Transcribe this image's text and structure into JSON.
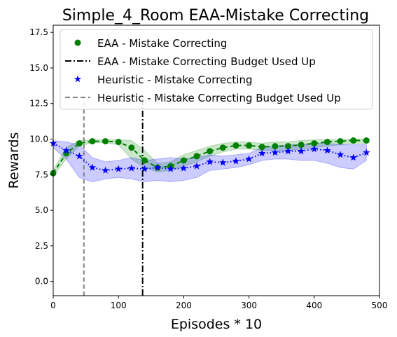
{
  "chart_data": {
    "type": "line",
    "title": "Simple_4_Room EAA-Mistake Correcting",
    "xlabel": "Episodes * 10",
    "ylabel": "Rewards",
    "xlim": [
      0,
      500
    ],
    "ylim": [
      -1.0,
      18.0
    ],
    "xticks": [
      0,
      100,
      200,
      300,
      400,
      500
    ],
    "yticks": [
      0.0,
      2.5,
      5.0,
      7.5,
      10.0,
      12.5,
      15.0,
      17.5
    ],
    "xtick_labels": [
      "0",
      "100",
      "200",
      "300",
      "400",
      "500"
    ],
    "ytick_labels": [
      "0.0",
      "2.5",
      "5.0",
      "7.5",
      "10.0",
      "12.5",
      "15.0",
      "17.5"
    ],
    "grid": false,
    "legend_position": "top",
    "series": [
      {
        "name": "EAA - Mistake Correcting",
        "color": "#008000",
        "marker": "circle",
        "linestyle": "dashed",
        "x": [
          0,
          20,
          40,
          60,
          80,
          100,
          120,
          140,
          160,
          180,
          200,
          220,
          240,
          260,
          280,
          300,
          320,
          340,
          360,
          380,
          400,
          420,
          440,
          460,
          480
        ],
        "y": [
          7.6,
          9.0,
          9.7,
          9.85,
          9.85,
          9.8,
          9.4,
          8.5,
          8.0,
          8.1,
          8.5,
          8.8,
          9.15,
          9.4,
          9.55,
          9.55,
          9.45,
          9.5,
          9.5,
          9.6,
          9.7,
          9.8,
          9.85,
          9.9,
          9.9
        ],
        "band_low": [
          7.4,
          8.6,
          9.5,
          9.75,
          9.75,
          9.6,
          8.6,
          8.0,
          7.7,
          7.8,
          8.1,
          8.4,
          8.8,
          9.1,
          9.3,
          9.3,
          9.2,
          9.2,
          9.2,
          9.3,
          9.4,
          9.5,
          9.6,
          9.7,
          9.7
        ],
        "band_high": [
          7.8,
          9.4,
          9.9,
          9.95,
          9.95,
          9.95,
          9.9,
          9.2,
          8.3,
          8.4,
          8.9,
          9.2,
          9.5,
          9.7,
          9.8,
          9.8,
          9.7,
          9.8,
          9.8,
          9.9,
          9.95,
          9.95,
          9.95,
          10.0,
          10.0
        ]
      },
      {
        "name": "Heuristic - Mistake Correcting",
        "color": "#0000ff",
        "marker": "star",
        "linestyle": "dotted",
        "x": [
          0,
          20,
          40,
          60,
          80,
          100,
          120,
          140,
          160,
          180,
          200,
          220,
          240,
          260,
          280,
          300,
          320,
          340,
          360,
          380,
          400,
          420,
          440,
          460,
          480
        ],
        "y": [
          9.7,
          9.2,
          8.8,
          8.0,
          7.8,
          7.9,
          7.95,
          7.9,
          8.0,
          7.9,
          7.95,
          8.1,
          8.4,
          8.35,
          8.45,
          8.6,
          9.0,
          9.05,
          9.15,
          9.15,
          9.3,
          9.2,
          8.9,
          8.7,
          9.05
        ],
        "band_low": [
          9.4,
          8.6,
          7.3,
          7.0,
          7.2,
          7.3,
          7.2,
          7.0,
          7.1,
          7.0,
          7.1,
          7.3,
          7.8,
          7.9,
          8.0,
          8.2,
          8.5,
          8.6,
          8.6,
          8.5,
          8.5,
          8.3,
          8.0,
          7.9,
          8.5
        ],
        "band_high": [
          9.9,
          9.8,
          9.6,
          8.7,
          8.4,
          8.5,
          8.7,
          8.5,
          8.6,
          8.7,
          8.6,
          8.7,
          8.9,
          8.8,
          8.9,
          9.0,
          9.4,
          9.5,
          9.6,
          9.6,
          9.7,
          9.7,
          9.6,
          9.6,
          9.6
        ]
      }
    ],
    "vlines": [
      {
        "name": "EAA - Mistake Correcting Budget Used Up",
        "x": 137,
        "ymax": 13.0,
        "color": "#000000",
        "linestyle": "dashdot"
      },
      {
        "name": "Heuristic - Mistake Correcting Budget Used Up",
        "x": 47,
        "ymax": 13.0,
        "color": "#808080",
        "linestyle": "dashed"
      }
    ],
    "legend": [
      "EAA - Mistake Correcting",
      "EAA - Mistake Correcting Budget Used Up",
      "Heuristic - Mistake Correcting",
      "Heuristic - Mistake Correcting Budget Used Up"
    ]
  }
}
